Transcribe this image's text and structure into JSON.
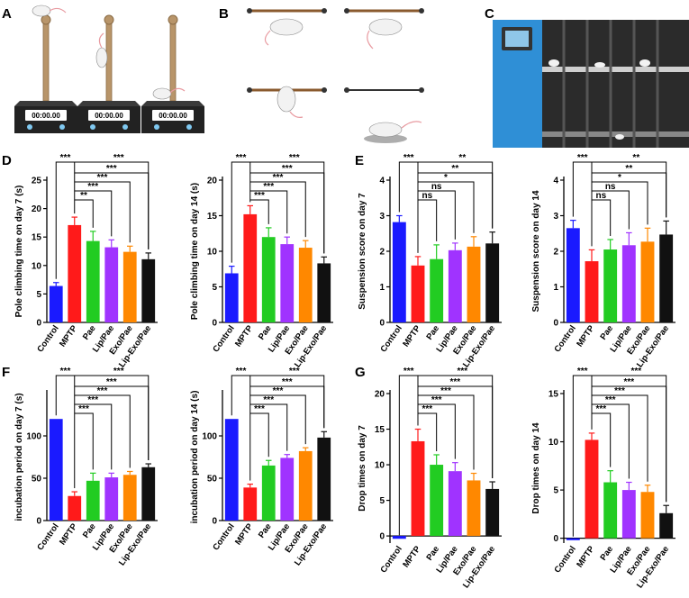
{
  "panel_letters": [
    "A",
    "B",
    "C",
    "D",
    "E",
    "F",
    "G"
  ],
  "illustrations": {
    "timer_text": "00:00.00"
  },
  "colors": {
    "Control": "#1a1aff",
    "MPTP": "#ff1a1a",
    "Pae": "#22cc22",
    "Lip/Pae": "#a033ff",
    "Exo/Pae": "#ff8800",
    "Lip-Exo/Pae": "#111111",
    "err_Control": "#1a1aff",
    "err_MPTP": "#ff1a1a"
  },
  "chart_data": [
    {
      "id": "D1",
      "panel": "D",
      "type": "bar",
      "ylabel": "Pole climbing time on day 7 (s)",
      "ylim": [
        0,
        25
      ],
      "yticks": [
        0,
        5,
        10,
        15,
        20,
        25
      ],
      "categories": [
        "Control",
        "MPTP",
        "Pae",
        "Lip/Pae",
        "Exo/Pae",
        "Lip-Exo/Pae"
      ],
      "values": [
        6.4,
        17.1,
        14.3,
        13.2,
        12.4,
        11.1
      ],
      "errors": [
        0.6,
        1.4,
        1.7,
        1.3,
        1.0,
        1.1
      ],
      "sig": [
        {
          "from": 1,
          "to": 2,
          "label": "**"
        },
        {
          "from": 1,
          "to": 3,
          "label": "***"
        },
        {
          "from": 1,
          "to": 4,
          "label": "***"
        },
        {
          "from": 1,
          "to": 5,
          "label": "***"
        },
        {
          "from": 0,
          "to": 1,
          "label": "***"
        }
      ]
    },
    {
      "id": "D2",
      "panel": "D",
      "type": "bar",
      "ylabel": "Pole climbing time on day 14 (s)",
      "ylim": [
        0,
        20
      ],
      "yticks": [
        0,
        5,
        10,
        15,
        20
      ],
      "categories": [
        "Control",
        "MPTP",
        "Pae",
        "Lip/Pae",
        "Exo/Pae",
        "Lip-Exo/Pae"
      ],
      "values": [
        6.9,
        15.2,
        12.0,
        11.0,
        10.5,
        8.3
      ],
      "errors": [
        1.0,
        1.2,
        1.3,
        1.0,
        1.0,
        0.9
      ],
      "sig": [
        {
          "from": 1,
          "to": 2,
          "label": "***"
        },
        {
          "from": 1,
          "to": 3,
          "label": "***"
        },
        {
          "from": 1,
          "to": 4,
          "label": "***"
        },
        {
          "from": 1,
          "to": 5,
          "label": "***"
        },
        {
          "from": 0,
          "to": 1,
          "label": "***"
        }
      ]
    },
    {
      "id": "E1",
      "panel": "E",
      "type": "bar",
      "ylabel": "Suspension score on day 7",
      "ylim": [
        0,
        4
      ],
      "yticks": [
        0,
        1,
        2,
        3,
        4
      ],
      "categories": [
        "Control",
        "MPTP",
        "Pae",
        "Lip/Pae",
        "Exo/Pae",
        "Lip-Exo/Pae"
      ],
      "values": [
        2.82,
        1.6,
        1.78,
        2.03,
        2.13,
        2.22
      ],
      "errors": [
        0.18,
        0.25,
        0.4,
        0.2,
        0.28,
        0.32
      ],
      "sig": [
        {
          "from": 1,
          "to": 2,
          "label": "ns"
        },
        {
          "from": 1,
          "to": 3,
          "label": "ns"
        },
        {
          "from": 1,
          "to": 4,
          "label": "*"
        },
        {
          "from": 1,
          "to": 5,
          "label": "**"
        },
        {
          "from": 0,
          "to": 1,
          "label": "***"
        }
      ]
    },
    {
      "id": "E2",
      "panel": "E",
      "type": "bar",
      "ylabel": "Suspension score on day 14",
      "ylim": [
        0,
        4
      ],
      "yticks": [
        0,
        1,
        2,
        3,
        4
      ],
      "categories": [
        "Control",
        "MPTP",
        "Pae",
        "Lip/Pae",
        "Exo/Pae",
        "Lip-Exo/Pae"
      ],
      "values": [
        2.65,
        1.72,
        2.05,
        2.17,
        2.27,
        2.47
      ],
      "errors": [
        0.22,
        0.32,
        0.28,
        0.35,
        0.38,
        0.38
      ],
      "sig": [
        {
          "from": 1,
          "to": 2,
          "label": "ns"
        },
        {
          "from": 1,
          "to": 3,
          "label": "ns"
        },
        {
          "from": 1,
          "to": 4,
          "label": "*"
        },
        {
          "from": 1,
          "to": 5,
          "label": "**"
        },
        {
          "from": 0,
          "to": 1,
          "label": "***"
        }
      ]
    },
    {
      "id": "F1",
      "panel": "F",
      "type": "bar",
      "ylabel": "incubation period on day 7 (s)",
      "ylim": [
        0,
        150
      ],
      "yticks": [
        0,
        50,
        100
      ],
      "categories": [
        "Control",
        "MPTP",
        "Pae",
        "Lip/Pae",
        "Exo/Pae",
        "Lip-Exo/Pae"
      ],
      "values": [
        120,
        29,
        47,
        51,
        54,
        63
      ],
      "errors": [
        0,
        5,
        9,
        5,
        4,
        4
      ],
      "sig": [
        {
          "from": 1,
          "to": 2,
          "label": "***"
        },
        {
          "from": 1,
          "to": 3,
          "label": "***"
        },
        {
          "from": 1,
          "to": 4,
          "label": "***"
        },
        {
          "from": 1,
          "to": 5,
          "label": "***"
        },
        {
          "from": 0,
          "to": 1,
          "label": "***"
        }
      ]
    },
    {
      "id": "F2",
      "panel": "F",
      "type": "bar",
      "ylabel": "incubation period on day 14 (s)",
      "ylim": [
        0,
        150
      ],
      "yticks": [
        0,
        50,
        100
      ],
      "categories": [
        "Control",
        "MPTP",
        "Pae",
        "Lip/Pae",
        "Exo/Pae",
        "Lip-Exo/Pae"
      ],
      "values": [
        120,
        39,
        65,
        74,
        82,
        98
      ],
      "errors": [
        0,
        4,
        6,
        4,
        4,
        7
      ],
      "sig": [
        {
          "from": 1,
          "to": 2,
          "label": "***"
        },
        {
          "from": 1,
          "to": 3,
          "label": "***"
        },
        {
          "from": 1,
          "to": 4,
          "label": "***"
        },
        {
          "from": 1,
          "to": 5,
          "label": "***"
        },
        {
          "from": 0,
          "to": 1,
          "label": "***"
        }
      ]
    },
    {
      "id": "G1",
      "panel": "G",
      "type": "bar",
      "ylabel": "Drop times on day 7",
      "ylim": [
        -1,
        20
      ],
      "yticks": [
        0,
        5,
        10,
        15,
        20
      ],
      "categories": [
        "Control",
        "MPTP",
        "Pae",
        "Lip/Pae",
        "Exo/Pae",
        "Lip-Exo/Pae"
      ],
      "values": [
        -0.4,
        13.3,
        10.0,
        9.1,
        7.8,
        6.6
      ],
      "errors": [
        0,
        1.7,
        1.4,
        1.2,
        1.0,
        1.0
      ],
      "sig": [
        {
          "from": 1,
          "to": 2,
          "label": "***"
        },
        {
          "from": 1,
          "to": 3,
          "label": "***"
        },
        {
          "from": 1,
          "to": 4,
          "label": "***"
        },
        {
          "from": 1,
          "to": 5,
          "label": "***"
        },
        {
          "from": 0,
          "to": 1,
          "label": "***"
        }
      ]
    },
    {
      "id": "G2",
      "panel": "G",
      "type": "bar",
      "ylabel": "Drop times on day 14",
      "ylim": [
        -0.5,
        15
      ],
      "yticks": [
        0,
        5,
        10,
        15
      ],
      "categories": [
        "Control",
        "MPTP",
        "Pae",
        "Lip/Pae",
        "Exo/Pae",
        "Lip-Exo/Pae"
      ],
      "values": [
        -0.2,
        10.2,
        5.8,
        5.0,
        4.8,
        2.6
      ],
      "errors": [
        0,
        0.7,
        1.2,
        0.8,
        0.7,
        0.8
      ],
      "sig": [
        {
          "from": 1,
          "to": 2,
          "label": "***"
        },
        {
          "from": 1,
          "to": 3,
          "label": "***"
        },
        {
          "from": 1,
          "to": 4,
          "label": "***"
        },
        {
          "from": 1,
          "to": 5,
          "label": "***"
        },
        {
          "from": 0,
          "to": 1,
          "label": "***"
        }
      ]
    }
  ]
}
